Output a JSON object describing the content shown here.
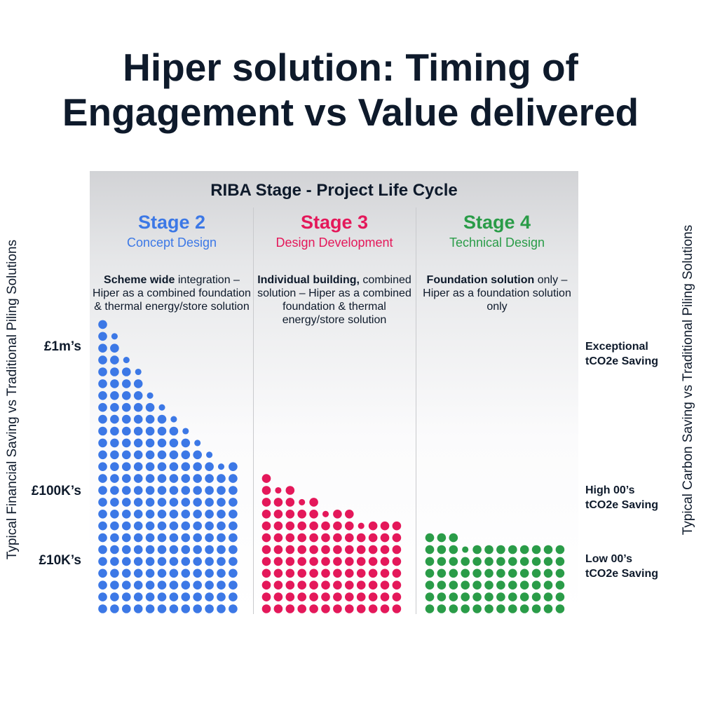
{
  "title_line1": "Hiper solution: Timing of",
  "title_line2": "Engagement vs Value delivered",
  "panel_title": "RIBA Stage - Project Life Cycle",
  "left_axis_title": "Typical Financial Saving vs Traditional Piling Solutions",
  "right_axis_title": "Typical Carbon Saving vs Traditional Piling Solutions",
  "left_labels": [
    "£1m’s",
    "£100K’s",
    "£10K’s"
  ],
  "right_labels": [
    {
      "line1": "Exceptional",
      "line2": "tCO2e Saving"
    },
    {
      "line1": "High 00’s",
      "line2": "tCO2e Saving"
    },
    {
      "line1": "Low 00’s",
      "line2": "tCO2e Saving"
    }
  ],
  "stages": [
    {
      "name": "Stage 2",
      "subtitle": "Concept Design",
      "color": "#3c78e6",
      "desc_lead": "Scheme wide",
      "desc_rest": "integration – Hiper as a combined foundation & thermal energy/store solution"
    },
    {
      "name": "Stage 3",
      "subtitle": "Design Development",
      "color": "#e4185a",
      "desc_lead": "Individual building,",
      "desc_rest": "combined solution – Hiper as a combined foundation & thermal energy/store solution"
    },
    {
      "name": "Stage 4",
      "subtitle": "Technical Design",
      "color": "#2a9c48",
      "desc_lead": "Foundation solution",
      "desc_rest": "only – Hiper as a foundation solution only"
    }
  ],
  "chart_data": {
    "type": "bar",
    "categories": [
      "Stage 2",
      "Stage 3",
      "Stage 4"
    ],
    "columns_per_stage": 12,
    "column_heights": [
      [
        25,
        24,
        22,
        21,
        19,
        18,
        17,
        16,
        15,
        14,
        13,
        13
      ],
      [
        12,
        11,
        11,
        10,
        10,
        9,
        9,
        9,
        8,
        8,
        8,
        8
      ],
      [
        7,
        7,
        7,
        6,
        6,
        6,
        6,
        6,
        6,
        6,
        6,
        6
      ]
    ],
    "y_labels_left": [
      "£1m’s",
      "£100K’s",
      "£10K’s"
    ],
    "y_labels_right": [
      "Exceptional tCO2e Saving",
      "High 00’s tCO2e Saving",
      "Low 00’s tCO2e Saving"
    ]
  }
}
